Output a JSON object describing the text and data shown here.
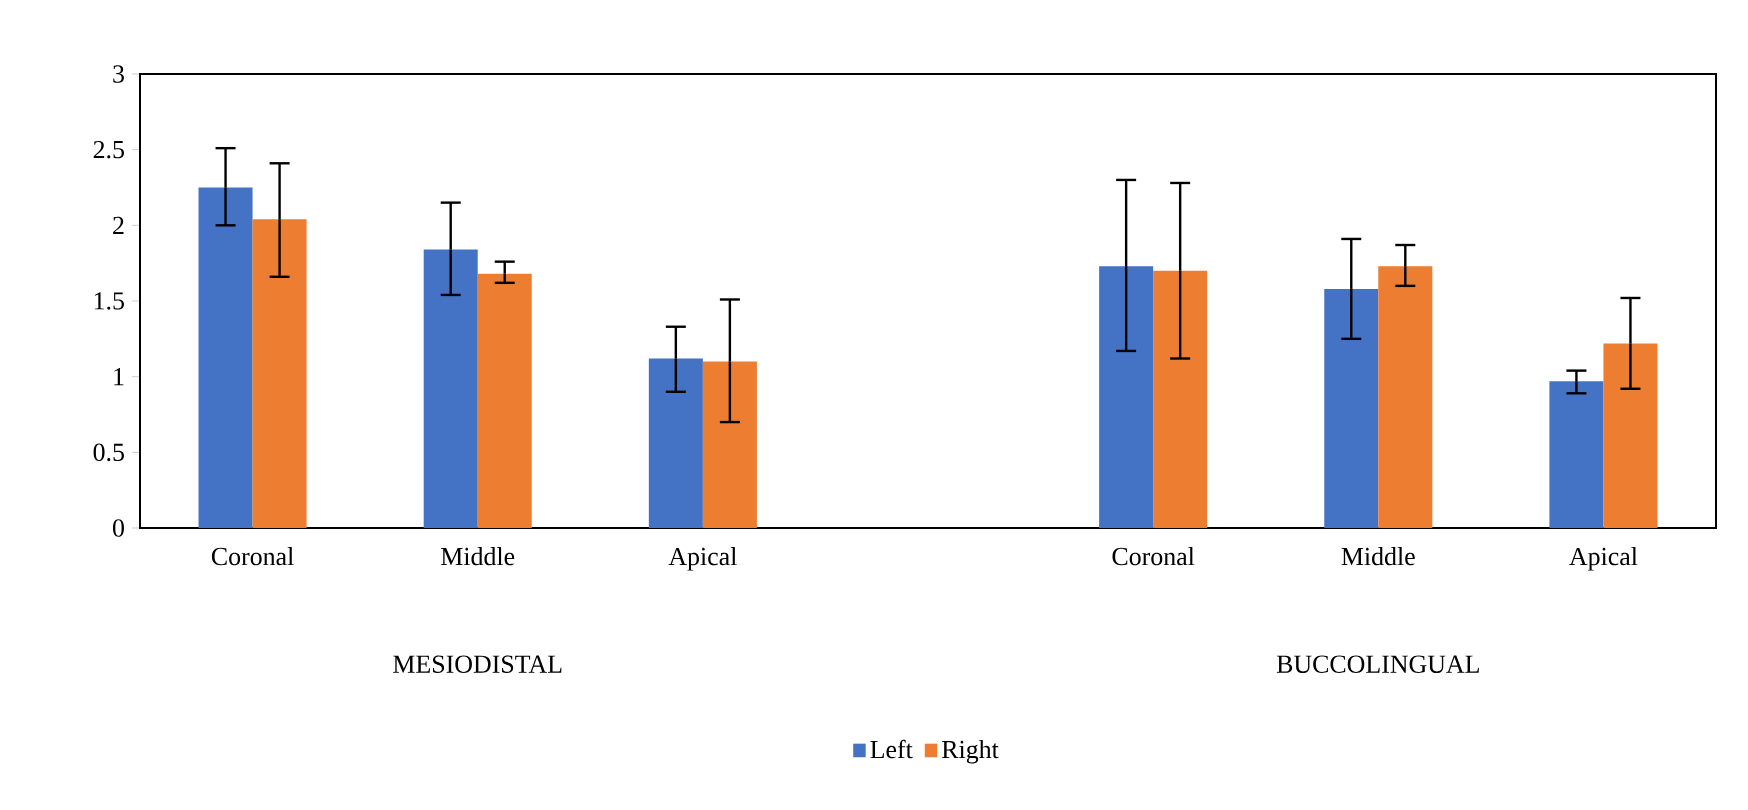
{
  "chart_data": {
    "type": "bar",
    "categories": [
      "Coronal",
      "Middle",
      "Apical",
      null,
      "Coronal",
      "Middle",
      "Apical"
    ],
    "series": [
      {
        "name": "Left",
        "color": "#4472c4",
        "values": [
          2.25,
          1.84,
          1.12,
          null,
          1.73,
          1.58,
          0.97
        ],
        "errors": [
          [
            2.0,
            2.51
          ],
          [
            1.54,
            2.15
          ],
          [
            0.9,
            1.33
          ],
          null,
          [
            1.17,
            2.3
          ],
          [
            1.25,
            1.91
          ],
          [
            0.89,
            1.04
          ]
        ]
      },
      {
        "name": "Right",
        "color": "#ed7d31",
        "values": [
          2.04,
          1.68,
          1.1,
          null,
          1.7,
          1.73,
          1.22
        ],
        "errors": [
          [
            1.66,
            2.41
          ],
          [
            1.62,
            1.76
          ],
          [
            0.7,
            1.51
          ],
          null,
          [
            1.12,
            2.28
          ],
          [
            1.6,
            1.87
          ],
          [
            0.92,
            1.52
          ]
        ]
      }
    ],
    "ylim": [
      0,
      3
    ],
    "yticks": [
      0,
      0.5,
      1,
      1.5,
      2,
      2.5,
      3
    ],
    "grid": false,
    "legend": "bottom",
    "annotations": [
      "MESIODISTAL",
      "BUCCOLINGUAL"
    ]
  }
}
